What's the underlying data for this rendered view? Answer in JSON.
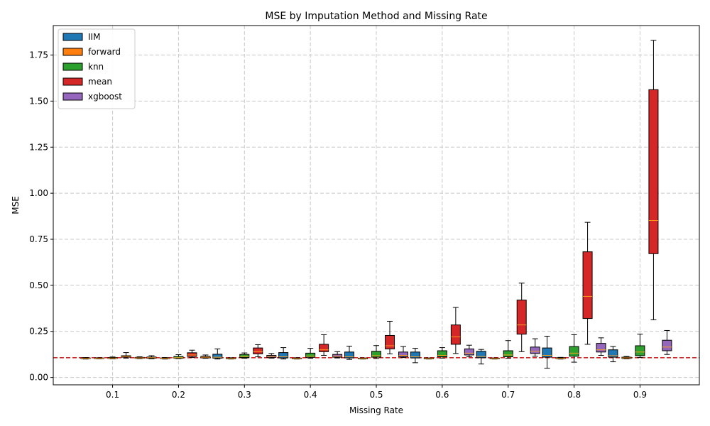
{
  "chart_data": {
    "type": "box",
    "title": "MSE by Imputation Method and Missing Rate",
    "xlabel": "Missing Rate",
    "ylabel": "MSE",
    "categories": [
      "0.1",
      "0.2",
      "0.3",
      "0.4",
      "0.5",
      "0.6",
      "0.7",
      "0.8",
      "0.9"
    ],
    "ylim": [
      -0.04,
      1.91
    ],
    "yticks": [
      "0.00",
      "0.25",
      "0.50",
      "0.75",
      "1.00",
      "1.25",
      "1.50",
      "1.75"
    ],
    "reference_line": {
      "value": 0.107,
      "color": "#d62728",
      "style": "dashed"
    },
    "grid": true,
    "legend_position": "top-left",
    "series": [
      {
        "name": "IIM",
        "color": "#1f77b4",
        "boxes": [
          {
            "min": 0.1,
            "q1": 0.102,
            "median": 0.104,
            "q3": 0.106,
            "max": 0.108
          },
          {
            "min": 0.101,
            "q1": 0.104,
            "median": 0.107,
            "q3": 0.111,
            "max": 0.118
          },
          {
            "min": 0.1,
            "q1": 0.105,
            "median": 0.11,
            "q3": 0.126,
            "max": 0.155
          },
          {
            "min": 0.1,
            "q1": 0.106,
            "median": 0.112,
            "q3": 0.135,
            "max": 0.162
          },
          {
            "min": 0.098,
            "q1": 0.106,
            "median": 0.112,
            "q3": 0.138,
            "max": 0.17
          },
          {
            "min": 0.08,
            "q1": 0.106,
            "median": 0.112,
            "q3": 0.138,
            "max": 0.158
          },
          {
            "min": 0.073,
            "q1": 0.107,
            "median": 0.114,
            "q3": 0.142,
            "max": 0.152
          },
          {
            "min": 0.05,
            "q1": 0.11,
            "median": 0.12,
            "q3": 0.16,
            "max": 0.224
          },
          {
            "min": 0.085,
            "q1": 0.11,
            "median": 0.118,
            "q3": 0.15,
            "max": 0.168
          }
        ]
      },
      {
        "name": "forward",
        "color": "#ff7f0e",
        "boxes": [
          {
            "min": 0.101,
            "q1": 0.102,
            "median": 0.104,
            "q3": 0.106,
            "max": 0.107
          },
          {
            "min": 0.1,
            "q1": 0.102,
            "median": 0.104,
            "q3": 0.106,
            "max": 0.108
          },
          {
            "min": 0.1,
            "q1": 0.102,
            "median": 0.103,
            "q3": 0.105,
            "max": 0.107
          },
          {
            "min": 0.1,
            "q1": 0.102,
            "median": 0.103,
            "q3": 0.105,
            "max": 0.107
          },
          {
            "min": 0.1,
            "q1": 0.101,
            "median": 0.103,
            "q3": 0.105,
            "max": 0.106
          },
          {
            "min": 0.1,
            "q1": 0.101,
            "median": 0.103,
            "q3": 0.105,
            "max": 0.106
          },
          {
            "min": 0.1,
            "q1": 0.101,
            "median": 0.103,
            "q3": 0.105,
            "max": 0.106
          },
          {
            "min": 0.1,
            "q1": 0.102,
            "median": 0.104,
            "q3": 0.107,
            "max": 0.109
          },
          {
            "min": 0.101,
            "q1": 0.103,
            "median": 0.106,
            "q3": 0.11,
            "max": 0.114
          }
        ]
      },
      {
        "name": "knn",
        "color": "#2ca02c",
        "boxes": [
          {
            "min": 0.101,
            "q1": 0.103,
            "median": 0.105,
            "q3": 0.108,
            "max": 0.111
          },
          {
            "min": 0.102,
            "q1": 0.104,
            "median": 0.107,
            "q3": 0.114,
            "max": 0.124
          },
          {
            "min": 0.104,
            "q1": 0.108,
            "median": 0.114,
            "q3": 0.125,
            "max": 0.133
          },
          {
            "min": 0.104,
            "q1": 0.109,
            "median": 0.116,
            "q3": 0.132,
            "max": 0.158
          },
          {
            "min": 0.103,
            "q1": 0.11,
            "median": 0.118,
            "q3": 0.142,
            "max": 0.173
          },
          {
            "min": 0.105,
            "q1": 0.112,
            "median": 0.12,
            "q3": 0.145,
            "max": 0.162
          },
          {
            "min": 0.104,
            "q1": 0.112,
            "median": 0.122,
            "q3": 0.145,
            "max": 0.2
          },
          {
            "min": 0.083,
            "q1": 0.115,
            "median": 0.132,
            "q3": 0.168,
            "max": 0.232
          },
          {
            "min": 0.108,
            "q1": 0.118,
            "median": 0.138,
            "q3": 0.172,
            "max": 0.235
          }
        ]
      },
      {
        "name": "mean",
        "color": "#d62728",
        "boxes": [
          {
            "min": 0.105,
            "q1": 0.11,
            "median": 0.114,
            "q3": 0.118,
            "max": 0.135
          },
          {
            "min": 0.108,
            "q1": 0.114,
            "median": 0.122,
            "q3": 0.134,
            "max": 0.148
          },
          {
            "min": 0.112,
            "q1": 0.128,
            "median": 0.14,
            "q3": 0.16,
            "max": 0.178
          },
          {
            "min": 0.12,
            "q1": 0.14,
            "median": 0.15,
            "q3": 0.18,
            "max": 0.232
          },
          {
            "min": 0.128,
            "q1": 0.155,
            "median": 0.172,
            "q3": 0.228,
            "max": 0.305
          },
          {
            "min": 0.13,
            "q1": 0.18,
            "median": 0.22,
            "q3": 0.285,
            "max": 0.38
          },
          {
            "min": 0.14,
            "q1": 0.235,
            "median": 0.285,
            "q3": 0.42,
            "max": 0.512
          },
          {
            "min": 0.18,
            "q1": 0.32,
            "median": 0.44,
            "q3": 0.682,
            "max": 0.842
          },
          {
            "min": 0.313,
            "q1": 0.672,
            "median": 0.852,
            "q3": 1.562,
            "max": 1.83
          }
        ]
      },
      {
        "name": "xgboost",
        "color": "#9467bd",
        "boxes": [
          {
            "min": 0.102,
            "q1": 0.104,
            "median": 0.106,
            "q3": 0.109,
            "max": 0.112
          },
          {
            "min": 0.104,
            "q1": 0.107,
            "median": 0.11,
            "q3": 0.115,
            "max": 0.122
          },
          {
            "min": 0.105,
            "q1": 0.109,
            "median": 0.114,
            "q3": 0.12,
            "max": 0.13
          },
          {
            "min": 0.106,
            "q1": 0.11,
            "median": 0.116,
            "q3": 0.125,
            "max": 0.14
          },
          {
            "min": 0.108,
            "q1": 0.113,
            "median": 0.12,
            "q3": 0.138,
            "max": 0.168
          },
          {
            "min": 0.112,
            "q1": 0.122,
            "median": 0.132,
            "q3": 0.155,
            "max": 0.175
          },
          {
            "min": 0.115,
            "q1": 0.13,
            "median": 0.142,
            "q3": 0.165,
            "max": 0.21
          },
          {
            "min": 0.12,
            "q1": 0.138,
            "median": 0.15,
            "q3": 0.185,
            "max": 0.215
          },
          {
            "min": 0.125,
            "q1": 0.145,
            "median": 0.165,
            "q3": 0.202,
            "max": 0.255
          }
        ]
      }
    ]
  }
}
